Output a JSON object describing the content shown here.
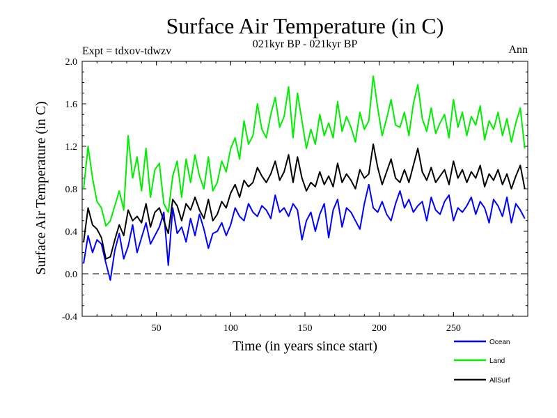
{
  "chart_data": {
    "type": "line",
    "title": "Surface Air Temperature (in C)",
    "subtitle": "021kyr BP - 021kyr BP",
    "left_label": "Expt = tdxov-tdwzv",
    "right_label": "Ann",
    "xlabel": "Time (in years since start)",
    "ylabel": "Surface Air Temperature (in C)",
    "xlim": [
      0,
      300
    ],
    "ylim": [
      -0.4,
      2.0
    ],
    "x_ticks": [
      50,
      100,
      150,
      200,
      250
    ],
    "y_ticks": [
      -0.4,
      0.0,
      0.4,
      0.8,
      1.2,
      1.6,
      2.0
    ],
    "y_tick_labels": [
      "-0.4",
      "0.0",
      "0.4",
      "0.8",
      "1.2",
      "1.6",
      "2.0"
    ],
    "reference_line": 0.0,
    "grid": false,
    "legend_position": "bottom-right",
    "x": [
      1,
      4,
      7,
      10,
      13,
      16,
      19,
      22,
      25,
      28,
      31,
      34,
      37,
      40,
      43,
      46,
      49,
      52,
      55,
      58,
      61,
      64,
      67,
      70,
      73,
      76,
      79,
      82,
      85,
      88,
      91,
      94,
      97,
      100,
      103,
      106,
      109,
      112,
      115,
      118,
      121,
      124,
      127,
      130,
      133,
      136,
      139,
      142,
      145,
      148,
      151,
      154,
      157,
      160,
      163,
      166,
      169,
      172,
      175,
      178,
      181,
      184,
      187,
      190,
      193,
      196,
      199,
      202,
      205,
      208,
      211,
      214,
      217,
      220,
      223,
      226,
      229,
      232,
      235,
      238,
      241,
      244,
      247,
      250,
      253,
      256,
      259,
      262,
      265,
      268,
      271,
      274,
      277,
      280,
      283,
      286,
      289,
      292,
      295,
      298
    ],
    "series": [
      {
        "name": "Ocean",
        "color": "#0000ff",
        "values": [
          0.1,
          0.36,
          0.2,
          0.32,
          0.28,
          0.1,
          -0.06,
          0.22,
          0.38,
          0.14,
          0.26,
          0.46,
          0.2,
          0.34,
          0.48,
          0.28,
          0.36,
          0.44,
          0.58,
          0.08,
          0.62,
          0.38,
          0.44,
          0.3,
          0.52,
          0.36,
          0.56,
          0.42,
          0.24,
          0.38,
          0.4,
          0.48,
          0.36,
          0.46,
          0.62,
          0.54,
          0.5,
          0.66,
          0.58,
          0.54,
          0.64,
          0.6,
          0.52,
          0.74,
          0.58,
          0.62,
          0.54,
          0.66,
          0.6,
          0.32,
          0.5,
          0.58,
          0.4,
          0.56,
          0.66,
          0.34,
          0.6,
          0.7,
          0.44,
          0.62,
          0.58,
          0.5,
          0.42,
          0.66,
          0.84,
          0.62,
          0.58,
          0.68,
          0.56,
          0.5,
          0.66,
          0.78,
          0.62,
          0.7,
          0.58,
          0.64,
          0.68,
          0.5,
          0.72,
          0.6,
          0.56,
          0.68,
          0.74,
          0.5,
          0.62,
          0.58,
          0.64,
          0.72,
          0.56,
          0.68,
          0.62,
          0.48,
          0.7,
          0.64,
          0.54,
          0.72,
          0.48,
          0.66,
          0.6,
          0.52
        ]
      },
      {
        "name": "Land",
        "color": "#00ee00",
        "values": [
          0.8,
          1.2,
          0.9,
          0.68,
          0.62,
          0.45,
          0.5,
          0.64,
          0.78,
          0.6,
          1.3,
          0.9,
          1.1,
          0.78,
          1.18,
          0.72,
          0.98,
          1.04,
          0.66,
          0.58,
          0.92,
          1.06,
          0.72,
          1.08,
          0.86,
          1.12,
          0.92,
          0.8,
          1.1,
          0.78,
          0.86,
          1.06,
          0.96,
          1.18,
          1.28,
          1.08,
          1.44,
          1.22,
          1.3,
          1.6,
          1.36,
          1.28,
          1.5,
          1.66,
          1.38,
          1.48,
          1.76,
          1.28,
          1.7,
          1.44,
          1.18,
          1.36,
          1.22,
          1.5,
          1.3,
          1.42,
          1.28,
          1.62,
          1.34,
          1.48,
          1.38,
          1.24,
          1.52,
          1.36,
          1.44,
          1.86,
          1.56,
          1.3,
          1.46,
          1.64,
          1.4,
          1.38,
          1.52,
          1.3,
          1.6,
          1.78,
          1.46,
          1.34,
          1.56,
          1.32,
          1.42,
          1.5,
          1.28,
          1.64,
          1.38,
          1.52,
          1.3,
          1.48,
          1.4,
          1.58,
          1.26,
          1.44,
          1.36,
          1.52,
          1.3,
          1.46,
          1.24,
          1.42,
          1.56,
          1.18
        ]
      },
      {
        "name": "AllSurf",
        "color": "#000000",
        "values": [
          0.3,
          0.62,
          0.46,
          0.42,
          0.34,
          0.14,
          0.16,
          0.32,
          0.46,
          0.36,
          0.6,
          0.5,
          0.54,
          0.48,
          0.66,
          0.44,
          0.58,
          0.62,
          0.5,
          0.38,
          0.7,
          0.64,
          0.5,
          0.66,
          0.6,
          0.72,
          0.6,
          0.52,
          0.7,
          0.5,
          0.56,
          0.68,
          0.62,
          0.76,
          0.84,
          0.72,
          0.88,
          0.82,
          0.86,
          1.0,
          0.92,
          0.86,
          0.94,
          1.06,
          0.88,
          0.96,
          1.12,
          0.86,
          1.1,
          0.9,
          0.78,
          0.86,
          0.82,
          0.96,
          0.84,
          0.92,
          0.82,
          1.04,
          0.86,
          0.94,
          0.88,
          0.8,
          0.98,
          0.9,
          0.94,
          1.22,
          1.0,
          0.84,
          0.96,
          1.08,
          0.9,
          0.86,
          0.98,
          0.86,
          1.02,
          1.18,
          0.96,
          0.88,
          1.0,
          0.86,
          0.92,
          0.98,
          0.84,
          1.06,
          0.9,
          0.98,
          0.86,
          0.96,
          0.9,
          1.02,
          0.82,
          0.94,
          0.88,
          0.98,
          0.84,
          0.94,
          0.8,
          0.92,
          1.02,
          0.8
        ]
      }
    ]
  }
}
